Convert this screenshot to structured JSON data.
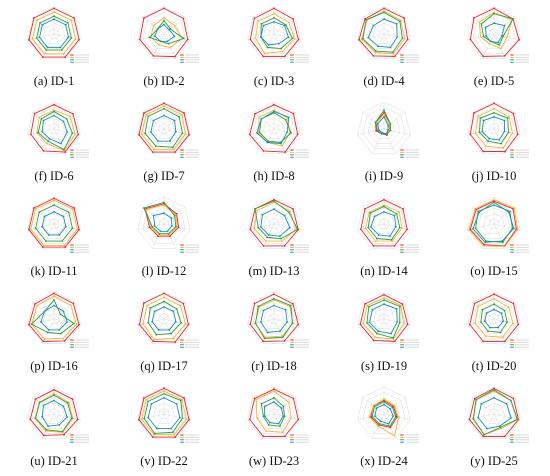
{
  "chart_data": {
    "type": "radar",
    "colors": {
      "s1": "#e8242c",
      "s2": "#f2b53d",
      "s3": "#2f9e3f",
      "s4": "#1e8eb3",
      "grid": "#c8c8c8"
    },
    "axes_count": 7,
    "r_range": [
      0,
      1
    ],
    "legend_placement": "bottom-right",
    "panels": [
      {
        "label": "(a)",
        "title": "ID-1",
        "series": [
          [
            0.95,
            0.95,
            0.95,
            0.95,
            0.95,
            0.95,
            0.95
          ],
          [
            0.82,
            0.82,
            0.82,
            0.82,
            0.82,
            0.82,
            0.82
          ],
          [
            0.66,
            0.66,
            0.66,
            0.66,
            0.66,
            0.66,
            0.66
          ],
          [
            0.55,
            0.55,
            0.55,
            0.55,
            0.55,
            0.55,
            0.55
          ]
        ]
      },
      {
        "label": "(b)",
        "title": "ID-2",
        "series": [
          [
            0.95,
            0.92,
            0.9,
            0.93,
            0.9,
            0.92,
            0.95
          ],
          [
            0.6,
            0.5,
            0.7,
            0.55,
            0.45,
            0.5,
            0.5
          ],
          [
            0.5,
            0.3,
            0.75,
            0.4,
            0.3,
            0.55,
            0.3
          ],
          [
            0.35,
            0.25,
            0.4,
            0.3,
            0.3,
            0.35,
            0.3
          ]
        ]
      },
      {
        "label": "(c)",
        "title": "ID-3",
        "series": [
          [
            0.95,
            0.9,
            0.93,
            0.92,
            0.92,
            0.9,
            0.93
          ],
          [
            0.75,
            0.7,
            0.78,
            0.72,
            0.8,
            0.7,
            0.75
          ],
          [
            0.6,
            0.55,
            0.7,
            0.6,
            0.55,
            0.5,
            0.6
          ],
          [
            0.45,
            0.5,
            0.55,
            0.4,
            0.45,
            0.5,
            0.5
          ]
        ]
      },
      {
        "label": "(d)",
        "title": "ID-4",
        "series": [
          [
            0.95,
            0.95,
            0.9,
            0.92,
            0.9,
            0.95,
            0.9
          ],
          [
            0.85,
            0.8,
            0.78,
            0.82,
            0.75,
            0.85,
            0.8
          ],
          [
            0.8,
            0.75,
            0.7,
            0.75,
            0.7,
            0.8,
            0.85
          ],
          [
            0.55,
            0.6,
            0.5,
            0.55,
            0.5,
            0.6,
            0.5
          ]
        ]
      },
      {
        "label": "(e)",
        "title": "ID-5",
        "series": [
          [
            0.95,
            0.9,
            0.95,
            0.9,
            0.92,
            0.9,
            0.95
          ],
          [
            0.8,
            0.85,
            0.5,
            0.6,
            0.4,
            0.5,
            0.7
          ],
          [
            0.75,
            0.9,
            0.35,
            0.45,
            0.3,
            0.4,
            0.6
          ],
          [
            0.4,
            0.5,
            0.3,
            0.35,
            0.3,
            0.3,
            0.4
          ]
        ]
      },
      {
        "label": "(f)",
        "title": "ID-6",
        "series": [
          [
            0.9,
            0.9,
            0.92,
            0.95,
            0.9,
            0.88,
            0.92
          ],
          [
            0.7,
            0.75,
            0.8,
            0.9,
            0.6,
            0.65,
            0.7
          ],
          [
            0.65,
            0.6,
            0.7,
            0.85,
            0.5,
            0.6,
            0.6
          ],
          [
            0.5,
            0.45,
            0.5,
            0.6,
            0.4,
            0.45,
            0.5
          ]
        ]
      },
      {
        "label": "(g)",
        "title": "ID-7",
        "series": [
          [
            0.95,
            0.95,
            0.95,
            0.95,
            0.95,
            0.95,
            0.95
          ],
          [
            0.85,
            0.85,
            0.82,
            0.85,
            0.85,
            0.85,
            0.85
          ],
          [
            0.75,
            0.72,
            0.7,
            0.75,
            0.7,
            0.72,
            0.75
          ],
          [
            0.5,
            0.5,
            0.45,
            0.5,
            0.5,
            0.5,
            0.5
          ]
        ]
      },
      {
        "label": "(h)",
        "title": "ID-8",
        "series": [
          [
            0.9,
            0.92,
            0.9,
            0.95,
            0.9,
            0.92,
            0.9
          ],
          [
            0.7,
            0.65,
            0.6,
            0.7,
            0.55,
            0.6,
            0.7
          ],
          [
            0.6,
            0.55,
            0.65,
            0.55,
            0.5,
            0.55,
            0.6
          ],
          [
            0.65,
            0.7,
            0.5,
            0.6,
            0.55,
            0.65,
            0.6
          ]
        ]
      },
      {
        "label": "(i)",
        "title": "ID-9",
        "series": [
          [
            0.6,
            0.3,
            0.2,
            0.25,
            0.2,
            0.3,
            0.4
          ],
          [
            0.55,
            0.25,
            0.2,
            0.2,
            0.2,
            0.25,
            0.35
          ],
          [
            0.7,
            0.3,
            0.25,
            0.2,
            0.2,
            0.25,
            0.4
          ],
          [
            0.45,
            0.2,
            0.15,
            0.2,
            0.15,
            0.2,
            0.3
          ]
        ]
      },
      {
        "label": "(j)",
        "title": "ID-10",
        "series": [
          [
            0.95,
            0.92,
            0.9,
            0.93,
            0.92,
            0.9,
            0.95
          ],
          [
            0.75,
            0.72,
            0.7,
            0.78,
            0.7,
            0.7,
            0.75
          ],
          [
            0.6,
            0.65,
            0.55,
            0.6,
            0.5,
            0.55,
            0.65
          ],
          [
            0.45,
            0.5,
            0.4,
            0.45,
            0.4,
            0.45,
            0.5
          ]
        ]
      },
      {
        "label": "(k)",
        "title": "ID-11",
        "series": [
          [
            0.95,
            0.95,
            0.95,
            0.95,
            0.95,
            0.95,
            0.95
          ],
          [
            0.88,
            0.88,
            0.88,
            0.88,
            0.88,
            0.88,
            0.88
          ],
          [
            0.7,
            0.7,
            0.7,
            0.7,
            0.7,
            0.7,
            0.7
          ],
          [
            0.45,
            0.45,
            0.45,
            0.45,
            0.45,
            0.45,
            0.45
          ]
        ]
      },
      {
        "label": "(l)",
        "title": "ID-12",
        "series": [
          [
            0.75,
            0.6,
            0.55,
            0.5,
            0.5,
            0.55,
            0.9
          ],
          [
            0.7,
            0.55,
            0.5,
            0.45,
            0.45,
            0.5,
            0.85
          ],
          [
            0.8,
            0.5,
            0.45,
            0.4,
            0.4,
            0.45,
            0.95
          ],
          [
            0.4,
            0.35,
            0.3,
            0.3,
            0.3,
            0.35,
            0.5
          ]
        ]
      },
      {
        "label": "(m)",
        "title": "ID-13",
        "series": [
          [
            0.9,
            0.9,
            0.92,
            0.9,
            0.9,
            0.9,
            0.9
          ],
          [
            0.8,
            0.75,
            0.85,
            0.7,
            0.7,
            0.75,
            0.8
          ],
          [
            0.85,
            0.7,
            0.9,
            0.6,
            0.55,
            0.6,
            0.9
          ],
          [
            0.55,
            0.5,
            0.6,
            0.5,
            0.45,
            0.5,
            0.55
          ]
        ]
      },
      {
        "label": "(n)",
        "title": "ID-14",
        "series": [
          [
            0.9,
            0.9,
            0.88,
            0.9,
            0.9,
            0.88,
            0.9
          ],
          [
            0.7,
            0.72,
            0.68,
            0.7,
            0.7,
            0.7,
            0.7
          ],
          [
            0.65,
            0.6,
            0.6,
            0.65,
            0.6,
            0.6,
            0.65
          ],
          [
            0.45,
            0.5,
            0.45,
            0.5,
            0.45,
            0.5,
            0.45
          ]
        ]
      },
      {
        "label": "(o)",
        "title": "ID-15",
        "series": [
          [
            0.85,
            0.9,
            0.85,
            0.9,
            0.85,
            0.9,
            0.85
          ],
          [
            0.9,
            0.95,
            0.9,
            0.92,
            0.9,
            0.95,
            0.9
          ],
          [
            0.7,
            0.75,
            0.7,
            0.75,
            0.7,
            0.7,
            0.75
          ],
          [
            0.8,
            0.7,
            0.75,
            0.7,
            0.75,
            0.8,
            0.7
          ]
        ]
      },
      {
        "label": "(p)",
        "title": "ID-16",
        "series": [
          [
            0.95,
            0.92,
            0.95,
            0.9,
            0.92,
            0.95,
            0.9
          ],
          [
            0.85,
            0.8,
            0.85,
            0.8,
            0.82,
            0.85,
            0.8
          ],
          [
            0.7,
            0.3,
            0.75,
            0.6,
            0.55,
            0.85,
            0.45
          ],
          [
            0.5,
            0.45,
            0.5,
            0.45,
            0.45,
            0.5,
            0.45
          ]
        ]
      },
      {
        "label": "(q)",
        "title": "ID-17",
        "series": [
          [
            0.95,
            0.92,
            0.93,
            0.95,
            0.92,
            0.93,
            0.95
          ],
          [
            0.8,
            0.78,
            0.82,
            0.8,
            0.85,
            0.8,
            0.8
          ],
          [
            0.65,
            0.6,
            0.65,
            0.6,
            0.65,
            0.6,
            0.65
          ],
          [
            0.45,
            0.45,
            0.45,
            0.45,
            0.45,
            0.45,
            0.45
          ]
        ]
      },
      {
        "label": "(r)",
        "title": "ID-18",
        "series": [
          [
            0.92,
            0.9,
            0.92,
            0.9,
            0.92,
            0.9,
            0.92
          ],
          [
            0.7,
            0.75,
            0.72,
            0.7,
            0.75,
            0.72,
            0.7
          ],
          [
            0.75,
            0.8,
            0.7,
            0.75,
            0.8,
            0.7,
            0.75
          ],
          [
            0.5,
            0.55,
            0.5,
            0.5,
            0.55,
            0.5,
            0.5
          ]
        ]
      },
      {
        "label": "(s)",
        "title": "ID-19",
        "series": [
          [
            0.9,
            0.88,
            0.9,
            0.92,
            0.88,
            0.9,
            0.9
          ],
          [
            0.78,
            0.8,
            0.75,
            0.82,
            0.75,
            0.78,
            0.8
          ],
          [
            0.7,
            0.75,
            0.6,
            0.78,
            0.6,
            0.65,
            0.72
          ],
          [
            0.55,
            0.6,
            0.5,
            0.6,
            0.5,
            0.55,
            0.55
          ]
        ]
      },
      {
        "label": "(t)",
        "title": "ID-20",
        "series": [
          [
            0.92,
            0.92,
            0.92,
            0.92,
            0.92,
            0.92,
            0.92
          ],
          [
            0.75,
            0.7,
            0.72,
            0.75,
            0.7,
            0.72,
            0.75
          ],
          [
            0.55,
            0.5,
            0.5,
            0.55,
            0.5,
            0.5,
            0.55
          ],
          [
            0.35,
            0.35,
            0.35,
            0.35,
            0.35,
            0.35,
            0.35
          ]
        ]
      },
      {
        "label": "(u)",
        "title": "ID-21",
        "series": [
          [
            0.9,
            0.88,
            0.9,
            0.85,
            0.88,
            0.9,
            0.88
          ],
          [
            0.75,
            0.7,
            0.72,
            0.75,
            0.7,
            0.72,
            0.7
          ],
          [
            0.7,
            0.65,
            0.68,
            0.72,
            0.65,
            0.7,
            0.68
          ],
          [
            0.5,
            0.45,
            0.5,
            0.45,
            0.5,
            0.45,
            0.5
          ]
        ]
      },
      {
        "label": "(v)",
        "title": "ID-22",
        "series": [
          [
            0.95,
            0.95,
            0.95,
            0.95,
            0.95,
            0.95,
            0.95
          ],
          [
            0.85,
            0.85,
            0.85,
            0.85,
            0.85,
            0.85,
            0.85
          ],
          [
            0.75,
            0.8,
            0.7,
            0.75,
            0.8,
            0.75,
            0.75
          ],
          [
            0.6,
            0.6,
            0.6,
            0.6,
            0.6,
            0.6,
            0.6
          ]
        ]
      },
      {
        "label": "(w)",
        "title": "ID-23",
        "series": [
          [
            0.92,
            0.92,
            0.92,
            0.92,
            0.92,
            0.92,
            0.92
          ],
          [
            0.85,
            0.7,
            0.65,
            0.75,
            0.7,
            0.65,
            0.85
          ],
          [
            0.6,
            0.45,
            0.4,
            0.5,
            0.45,
            0.4,
            0.6
          ],
          [
            0.45,
            0.35,
            0.35,
            0.4,
            0.35,
            0.35,
            0.45
          ]
        ]
      },
      {
        "label": "(x)",
        "title": "ID-24",
        "series": [
          [
            0.5,
            0.45,
            0.5,
            0.55,
            0.45,
            0.5,
            0.5
          ],
          [
            0.55,
            0.5,
            0.55,
            0.9,
            0.5,
            0.55,
            0.5
          ],
          [
            0.45,
            0.4,
            0.45,
            0.5,
            0.4,
            0.45,
            0.45
          ],
          [
            0.35,
            0.3,
            0.35,
            0.4,
            0.3,
            0.35,
            0.35
          ]
        ]
      },
      {
        "label": "(y)",
        "title": "ID-25",
        "series": [
          [
            0.95,
            0.92,
            0.93,
            0.92,
            0.92,
            0.93,
            0.92
          ],
          [
            0.85,
            0.8,
            0.9,
            0.6,
            0.85,
            0.8,
            0.85
          ],
          [
            0.9,
            0.8,
            0.88,
            0.55,
            0.85,
            0.78,
            0.85
          ],
          [
            0.6,
            0.6,
            0.65,
            0.5,
            0.6,
            0.6,
            0.6
          ]
        ]
      }
    ]
  }
}
